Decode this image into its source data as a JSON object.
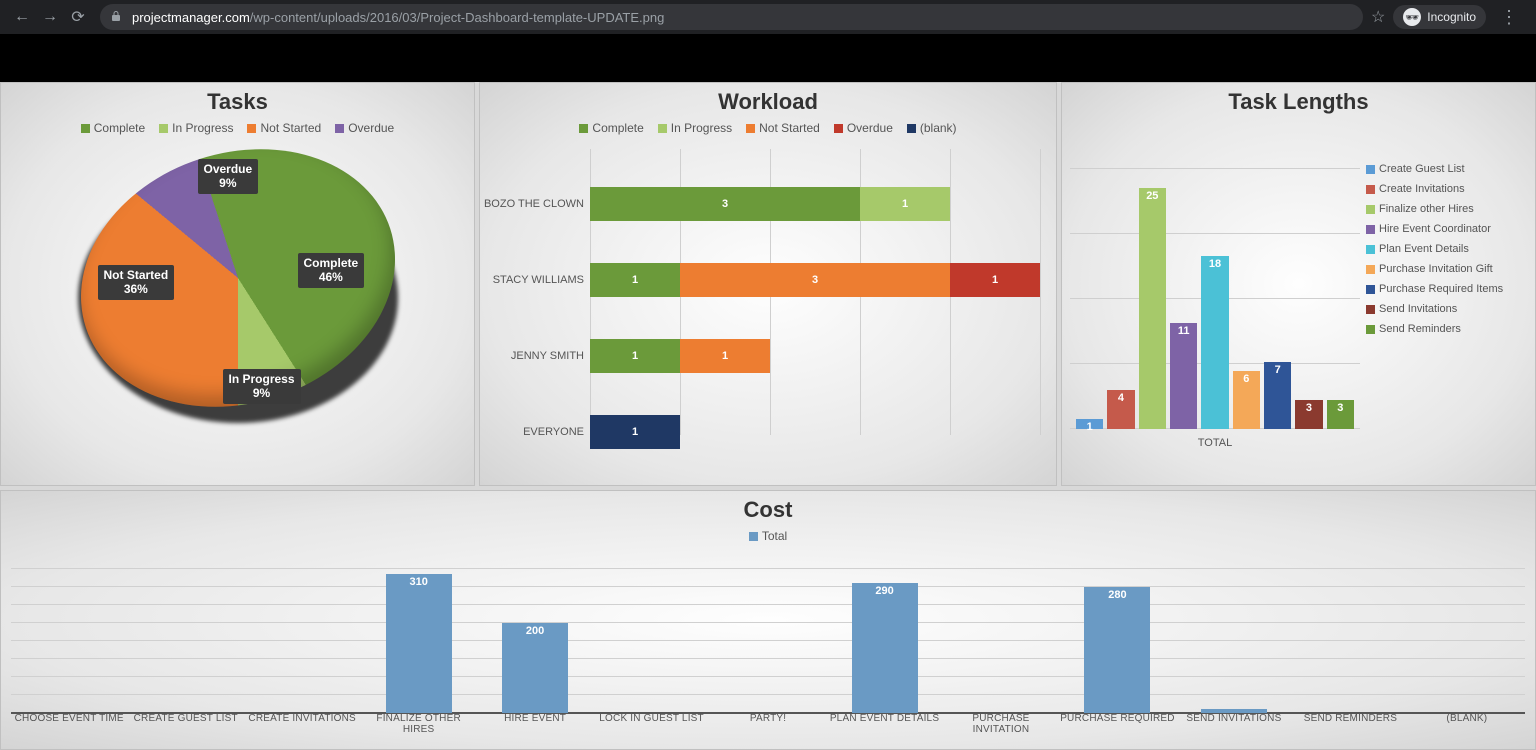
{
  "browser": {
    "url_prefix": "projectmanager.com",
    "url_rest": "/wp-content/uploads/2016/03/Project-Dashboard-template-UPDATE.png",
    "incognito_label": "Incognito"
  },
  "colors": {
    "complete": "#6b9a3a",
    "in_progress": "#a6c96a",
    "not_started": "#ed7d31",
    "overdue_pie": "#7e63a6",
    "overdue_bar": "#c0392b",
    "blank": "#1f3864",
    "tl": [
      "#5b9bd5",
      "#c55a4b",
      "#a6c96a",
      "#7e63a6",
      "#4bc1d6",
      "#f4a858",
      "#2f5597",
      "#8b3a2f",
      "#6b9a3a"
    ],
    "cost_blue": "#6a9ac4",
    "grid": "#cfcfcf"
  },
  "tasks": {
    "title": "Tasks",
    "legend": [
      "Complete",
      "In Progress",
      "Not Started",
      "Overdue"
    ],
    "slices": [
      {
        "label": "Complete",
        "pct": 46
      },
      {
        "label": "In Progress",
        "pct": 9
      },
      {
        "label": "Not Started",
        "pct": 36
      },
      {
        "label": "Overdue",
        "pct": 9
      }
    ]
  },
  "workload": {
    "title": "Workload",
    "legend": [
      "Complete",
      "In Progress",
      "Not Started",
      "Overdue",
      "(blank)"
    ],
    "xmax": 5,
    "rows": [
      {
        "name": "BOZO THE CLOWN",
        "segs": [
          {
            "k": "complete",
            "v": 3
          },
          {
            "k": "in_progress",
            "v": 1
          }
        ]
      },
      {
        "name": "STACY WILLIAMS",
        "segs": [
          {
            "k": "complete",
            "v": 1
          },
          {
            "k": "not_started",
            "v": 3
          },
          {
            "k": "overdue_bar",
            "v": 1
          }
        ]
      },
      {
        "name": "JENNY SMITH",
        "segs": [
          {
            "k": "complete",
            "v": 1
          },
          {
            "k": "not_started",
            "v": 1
          }
        ]
      },
      {
        "name": "EVERYONE",
        "segs": [
          {
            "k": "blank",
            "v": 1
          }
        ]
      }
    ]
  },
  "task_lengths": {
    "title": "Task Lengths",
    "x_label": "TOTAL",
    "ymax": 27,
    "legend": [
      "Create Guest List",
      "Create Invitations",
      "Finalize other Hires",
      "Hire Event Coordinator",
      "Plan Event Details",
      "Purchase Invitation Gift",
      "Purchase Required Items",
      "Send Invitations",
      "Send Reminders"
    ],
    "values": [
      1,
      4,
      25,
      11,
      18,
      6,
      7,
      3,
      3
    ]
  },
  "cost": {
    "title": "Cost",
    "legend_label": "Total",
    "ymax": 320,
    "grid_step": 40,
    "categories": [
      "CHOOSE EVENT TIME",
      "CREATE GUEST LIST",
      "CREATE INVITATIONS",
      "FINALIZE OTHER HIRES",
      "HIRE EVENT",
      "LOCK IN GUEST LIST",
      "PARTY!",
      "PLAN EVENT DETAILS",
      "PURCHASE INVITATION",
      "PURCHASE REQUIRED",
      "SEND INVITATIONS",
      "SEND REMINDERS",
      "(BLANK)"
    ],
    "values": [
      0,
      0,
      0,
      310,
      200,
      0,
      0,
      290,
      0,
      280,
      8,
      0,
      0
    ]
  }
}
